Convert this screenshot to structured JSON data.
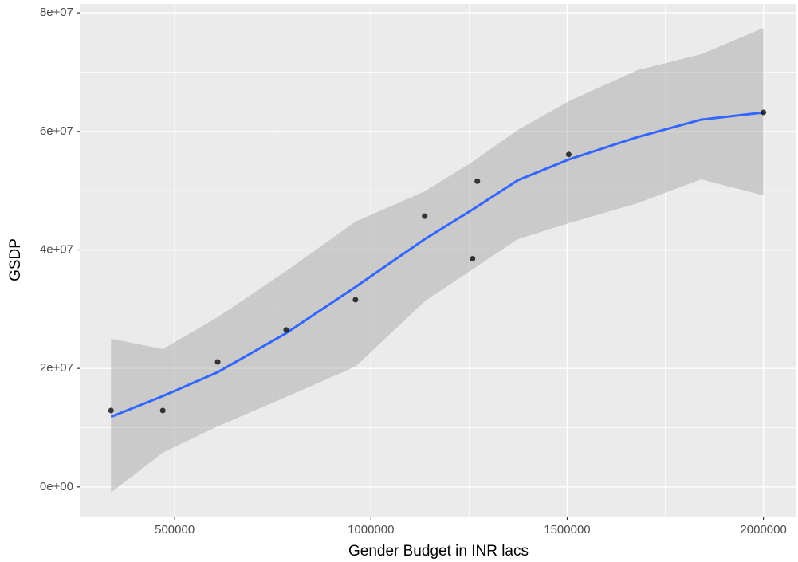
{
  "chart_data": {
    "type": "scatter",
    "x_label": "Gender Budget in INR lacs",
    "y_label": "GSDP",
    "x": [
      337700,
      469600,
      609500,
      784000,
      960500,
      1137000,
      1258700,
      1271000,
      1504000,
      2000000
    ],
    "values": [
      12900000,
      12900000,
      21100000,
      26500000,
      31600000,
      45700000,
      38500000,
      51600000,
      56100000,
      63200000
    ],
    "color": "#000000",
    "smooth": {
      "color": "#3366ff",
      "band_color": "#999999",
      "x": [
        337700,
        469600,
        609500,
        784000,
        960500,
        1137000,
        1258600,
        1374200,
        1504100,
        1678500,
        1840800,
        2000000
      ],
      "values": [
        11830000,
        15330000,
        19360000,
        25950000,
        33750000,
        41820000,
        46790000,
        51760000,
        55260000,
        59030000,
        61980000,
        63190000
      ],
      "upper": [
        25010000,
        23260000,
        28640000,
        36440000,
        44770000,
        49880000,
        54860000,
        60240000,
        65080000,
        70320000,
        73010000,
        77450000
      ],
      "lower": [
        -940000,
        5780000,
        10220000,
        15190000,
        20300000,
        31330000,
        36710000,
        41820000,
        44500000,
        47870000,
        51900000,
        49210000
      ]
    },
    "xlim": [
      258000,
      2082000
    ],
    "ylim": [
      -5000000,
      81500000
    ],
    "xticks": [
      500000,
      1000000,
      1500000,
      2000000
    ],
    "yticks": [
      {
        "value": 0,
        "label": "0e+00"
      },
      {
        "value": 20000000,
        "label": "2e+07"
      },
      {
        "value": 40000000,
        "label": "4e+07"
      },
      {
        "value": 60000000,
        "label": "6e+07"
      },
      {
        "value": 80000000,
        "label": "8e+07"
      }
    ],
    "minor_xgrid": [
      250000,
      750000,
      1250000,
      1750000
    ],
    "minor_ygrid": [
      10000000,
      30000000,
      50000000,
      70000000
    ],
    "grid": true
  }
}
